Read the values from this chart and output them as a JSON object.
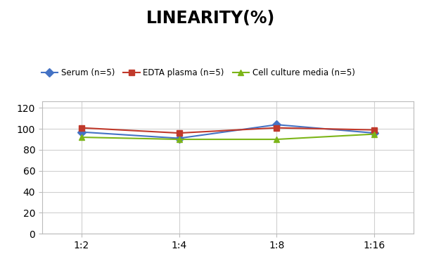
{
  "title": "LINEARITY(%)",
  "title_fontsize": 17,
  "title_fontweight": "bold",
  "x_labels": [
    "1:2",
    "1:4",
    "1:8",
    "1:16"
  ],
  "series": [
    {
      "label": "Serum (n=5)",
      "color": "#4472C4",
      "marker": "D",
      "values": [
        97,
        91,
        104,
        96
      ]
    },
    {
      "label": "EDTA plasma (n=5)",
      "color": "#C0392B",
      "marker": "s",
      "values": [
        101,
        96,
        101,
        99
      ]
    },
    {
      "label": "Cell culture media (n=5)",
      "color": "#7CB518",
      "marker": "^",
      "values": [
        92,
        90,
        90,
        95
      ]
    }
  ],
  "ylim": [
    0,
    126
  ],
  "yticks": [
    0,
    20,
    40,
    60,
    80,
    100,
    120
  ],
  "background_color": "#ffffff",
  "grid_color": "#d0d0d0"
}
